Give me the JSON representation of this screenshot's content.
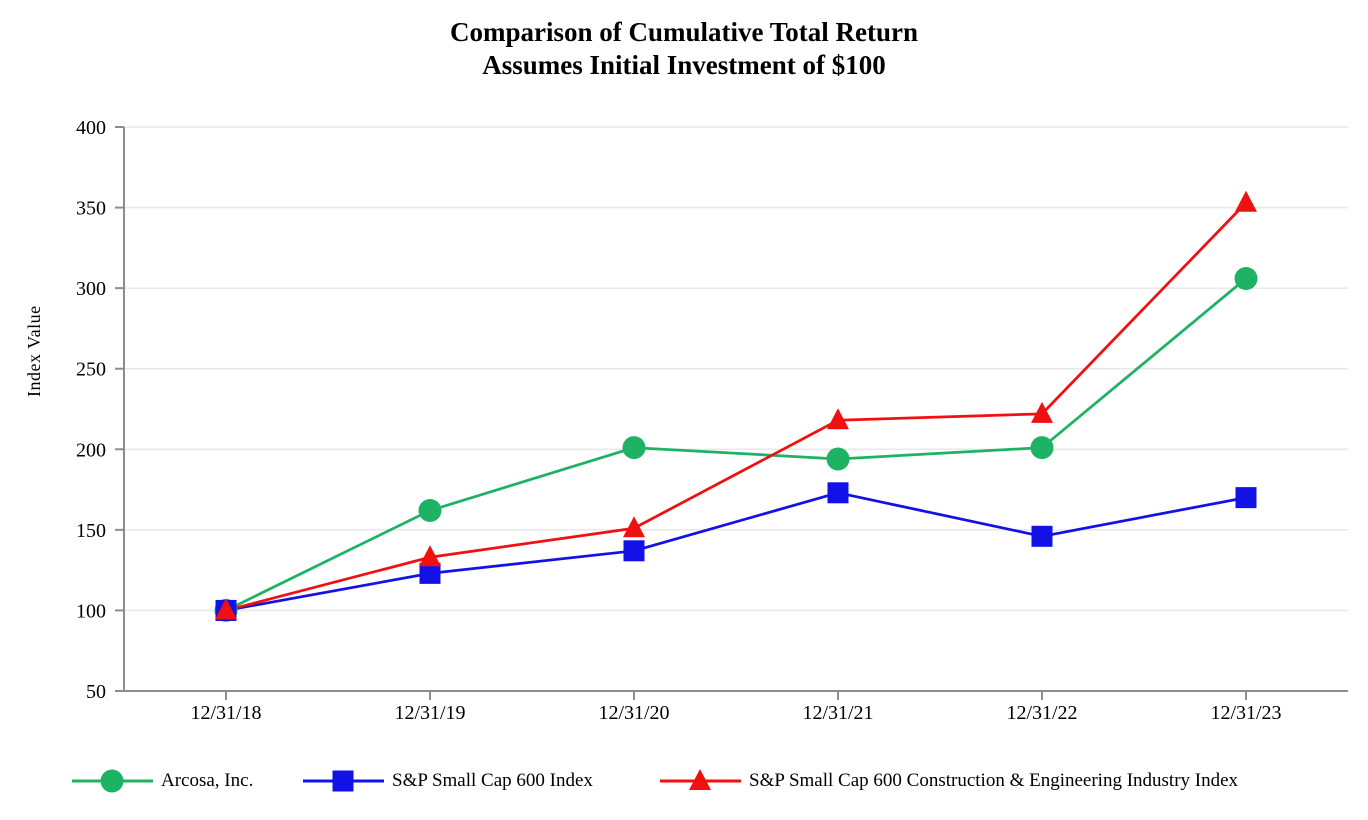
{
  "chart_data": {
    "type": "line",
    "title": "Comparison of Cumulative Total Return",
    "subtitle": "Assumes Initial Investment of $100",
    "ylabel": "Index Value",
    "categories": [
      "12/31/18",
      "12/31/19",
      "12/31/20",
      "12/31/21",
      "12/31/22",
      "12/31/23"
    ],
    "ylim": [
      50,
      400
    ],
    "ytick_step": 50,
    "grid": "horizontal",
    "legend_position": "bottom",
    "axis_color": "#8C8C8C",
    "gridline_color": "#E9E9E9",
    "series": [
      {
        "name": "Arcosa, Inc.",
        "marker": "circle",
        "color": "#1EB264",
        "values": [
          100,
          162,
          201,
          194,
          201,
          306
        ]
      },
      {
        "name": "S&P Small Cap 600 Index",
        "marker": "square",
        "color": "#1212E6",
        "values": [
          100,
          123,
          137,
          173,
          146,
          170
        ]
      },
      {
        "name": "S&P Small Cap 600 Construction & Engineering Industry Index",
        "marker": "triangle",
        "color": "#F01010",
        "values": [
          100,
          133,
          151,
          218,
          222,
          353
        ]
      }
    ]
  }
}
